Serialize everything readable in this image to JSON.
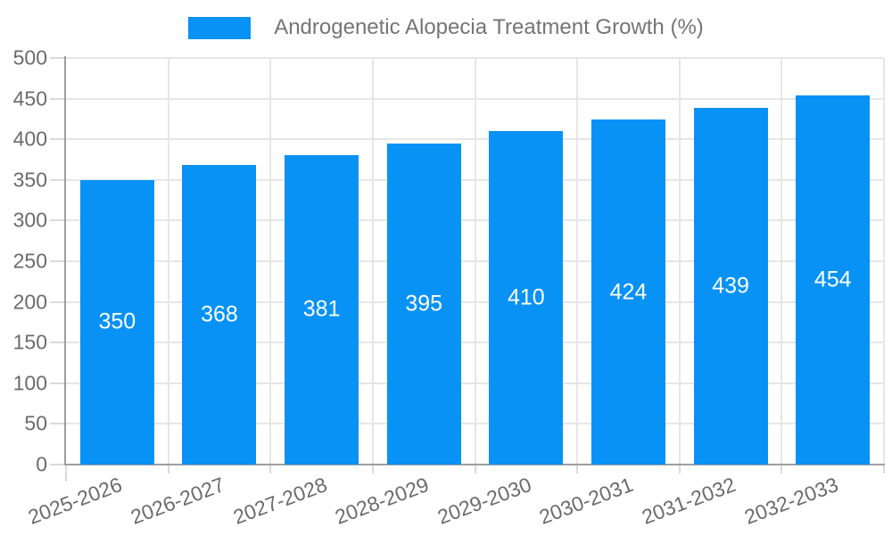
{
  "chart_data": {
    "type": "bar",
    "title": "Androgenetic Alopecia Treatment Growth (%)",
    "legend": {
      "entries": [
        "Androgenetic Alopecia Treatment Growth (%)"
      ],
      "position": "top",
      "swatch_color": "#0992f5"
    },
    "categories": [
      "2025-2026",
      "2026-2027",
      "2027-2028",
      "2028-2029",
      "2029-2030",
      "2030-2031",
      "2031-2032",
      "2032-2033"
    ],
    "values": [
      350,
      368,
      381,
      395,
      410,
      424,
      439,
      454
    ],
    "value_labels": [
      "350",
      "368",
      "381",
      "395",
      "410",
      "424",
      "439",
      "454"
    ],
    "xlabel": "",
    "ylabel": "",
    "ylim": [
      0,
      500
    ],
    "ytick_step": 50,
    "yticks": [
      0,
      50,
      100,
      150,
      200,
      250,
      300,
      350,
      400,
      450,
      500
    ],
    "grid": true,
    "x_tick_label_rotation_deg": -20.5,
    "colors": {
      "bar": "#0992f5",
      "value_label": "#ffffff",
      "gridline": "#e6e6e6",
      "axis": "#9e9e9e",
      "tick_mark": "#dadada",
      "axis_label_text": "#6b6b6b",
      "legend_text": "#757575",
      "background": "#ffffff"
    }
  }
}
